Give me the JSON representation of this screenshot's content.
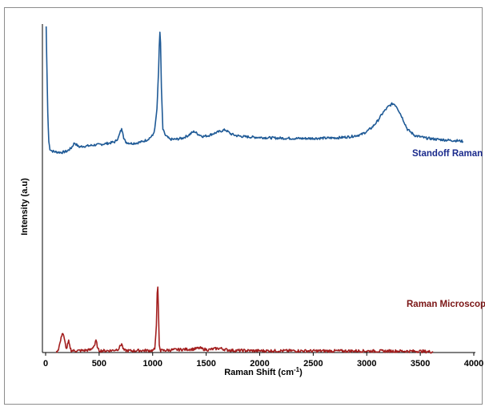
{
  "chart_data": {
    "type": "line",
    "title": "",
    "xlabel": "Raman Shift (cm",
    "xlabel_sup": "-1",
    "xlabel_close": ")",
    "ylabel": "Intensity (a.u)",
    "xlim": [
      0,
      4000
    ],
    "ylim": [
      0,
      1
    ],
    "y_ticks_shown": false,
    "grid": false,
    "x_ticks": [
      {
        "value": 0,
        "label": "0"
      },
      {
        "value": 500,
        "label": "500"
      },
      {
        "value": 1000,
        "label": "1000"
      },
      {
        "value": 1500,
        "label": "1500"
      },
      {
        "value": 2000,
        "label": "2000"
      },
      {
        "value": 2500,
        "label": "2500"
      },
      {
        "value": 3000,
        "label": "3000"
      },
      {
        "value": 3500,
        "label": "3500"
      },
      {
        "value": 4000,
        "label": "4000"
      }
    ],
    "series": [
      {
        "name": "Standoff Raman",
        "color": "#1f5a96",
        "x": [
          5,
          10,
          20,
          30,
          40,
          60,
          100,
          150,
          200,
          240,
          270,
          290,
          310,
          350,
          400,
          450,
          500,
          550,
          600,
          650,
          680,
          700,
          710,
          720,
          730,
          745,
          760,
          800,
          850,
          900,
          950,
          1000,
          1020,
          1040,
          1055,
          1062,
          1068,
          1074,
          1082,
          1095,
          1120,
          1160,
          1220,
          1280,
          1330,
          1370,
          1390,
          1420,
          1470,
          1520,
          1580,
          1640,
          1680,
          1700,
          1730,
          1780,
          1850,
          1950,
          2050,
          2150,
          2250,
          2350,
          2450,
          2550,
          2650,
          2750,
          2850,
          2950,
          3000,
          3050,
          3100,
          3150,
          3200,
          3240,
          3260,
          3280,
          3320,
          3380,
          3450,
          3550,
          3650,
          3750,
          3850,
          3900
        ],
        "y": [
          1.0,
          0.86,
          0.58,
          0.44,
          0.405,
          0.395,
          0.39,
          0.388,
          0.394,
          0.41,
          0.435,
          0.425,
          0.415,
          0.418,
          0.42,
          0.424,
          0.426,
          0.43,
          0.434,
          0.44,
          0.46,
          0.49,
          0.5,
          0.49,
          0.46,
          0.44,
          0.436,
          0.432,
          0.434,
          0.44,
          0.45,
          0.47,
          0.5,
          0.6,
          0.78,
          0.9,
          0.97,
          0.92,
          0.7,
          0.5,
          0.47,
          0.452,
          0.452,
          0.458,
          0.47,
          0.485,
          0.49,
          0.478,
          0.466,
          0.47,
          0.482,
          0.492,
          0.498,
          0.49,
          0.478,
          0.47,
          0.465,
          0.462,
          0.46,
          0.458,
          0.457,
          0.456,
          0.456,
          0.457,
          0.458,
          0.46,
          0.465,
          0.475,
          0.49,
          0.51,
          0.54,
          0.58,
          0.61,
          0.625,
          0.622,
          0.61,
          0.57,
          0.5,
          0.47,
          0.458,
          0.452,
          0.448,
          0.445,
          0.442
        ]
      },
      {
        "name": "Raman Microscopy",
        "color": "#a31f1f",
        "x": [
          100,
          120,
          140,
          155,
          165,
          180,
          195,
          205,
          215,
          225,
          240,
          280,
          350,
          420,
          460,
          470,
          478,
          488,
          500,
          550,
          620,
          680,
          700,
          710,
          718,
          728,
          740,
          800,
          880,
          950,
          1000,
          1020,
          1035,
          1042,
          1048,
          1054,
          1062,
          1075,
          1100,
          1200,
          1300,
          1380,
          1420,
          1440,
          1470,
          1520,
          1580,
          1630,
          1660,
          1700,
          1760,
          1850,
          1950,
          2100,
          2300,
          2500,
          2700,
          2900,
          3100,
          3300,
          3500,
          3620
        ],
        "y": [
          0.01,
          0.03,
          0.09,
          0.145,
          0.135,
          0.08,
          0.03,
          0.06,
          0.085,
          0.05,
          0.02,
          0.018,
          0.02,
          0.025,
          0.06,
          0.09,
          0.07,
          0.03,
          0.02,
          0.018,
          0.02,
          0.03,
          0.055,
          0.068,
          0.05,
          0.025,
          0.02,
          0.018,
          0.02,
          0.02,
          0.02,
          0.03,
          0.2,
          0.42,
          0.47,
          0.3,
          0.06,
          0.02,
          0.02,
          0.025,
          0.028,
          0.03,
          0.035,
          0.038,
          0.03,
          0.025,
          0.032,
          0.036,
          0.03,
          0.024,
          0.02,
          0.02,
          0.018,
          0.018,
          0.018,
          0.017,
          0.017,
          0.017,
          0.016,
          0.016,
          0.015,
          0.01
        ]
      }
    ]
  }
}
